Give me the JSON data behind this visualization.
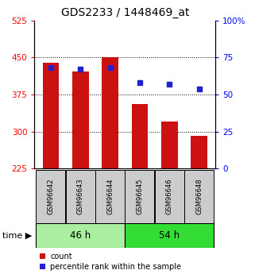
{
  "title": "GDS2233 / 1448469_at",
  "samples": [
    "GSM96642",
    "GSM96643",
    "GSM96644",
    "GSM96645",
    "GSM96646",
    "GSM96648"
  ],
  "counts": [
    440,
    422,
    451,
    355,
    320,
    291
  ],
  "percentiles": [
    68,
    67,
    68,
    58,
    57,
    54
  ],
  "ylim_left": [
    225,
    525
  ],
  "ylim_right": [
    0,
    100
  ],
  "yticks_left": [
    225,
    300,
    375,
    450,
    525
  ],
  "yticks_right": [
    0,
    25,
    50,
    75,
    100
  ],
  "bar_bottom": 225,
  "bar_color": "#cc1111",
  "dot_color": "#2222cc",
  "groups": [
    {
      "label": "46 h",
      "indices": [
        0,
        1,
        2
      ],
      "color": "#aaeea0"
    },
    {
      "label": "54 h",
      "indices": [
        3,
        4,
        5
      ],
      "color": "#33dd33"
    }
  ],
  "legend_items": [
    {
      "label": "count",
      "color": "#cc1111"
    },
    {
      "label": "percentile rank within the sample",
      "color": "#2222cc"
    }
  ],
  "grid_yticks": [
    300,
    375,
    450
  ],
  "title_fontsize": 10,
  "tick_fontsize": 7.5,
  "sample_fontsize": 6,
  "group_fontsize": 8.5,
  "legend_fontsize": 7,
  "time_fontsize": 8
}
